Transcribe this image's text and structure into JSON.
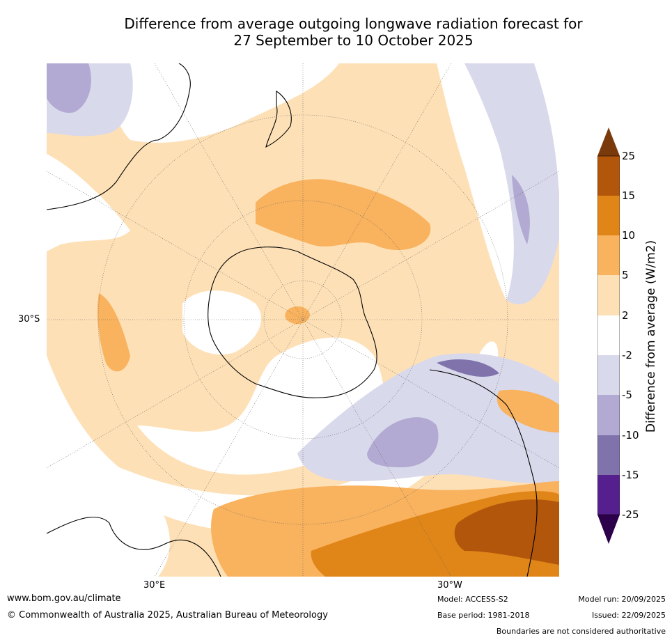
{
  "title": {
    "line1": "Difference from average outgoing longwave radiation forecast for",
    "line2": "27 September to 10 October 2025"
  },
  "map": {
    "lat_label": "30°S",
    "lon_labels": [
      "30°E",
      "30°W"
    ]
  },
  "colorbar": {
    "title": "Difference from average (W/m2)",
    "ticks": [
      "25",
      "15",
      "10",
      "5",
      "2",
      "-2",
      "-5",
      "-10",
      "-15",
      "-25"
    ],
    "colors": [
      "#7b3a0c",
      "#b2560b",
      "#e08518",
      "#f9b25d",
      "#fde0b6",
      "#ffffff",
      "#d9d9ec",
      "#b2aad2",
      "#8073ac",
      "#55208d",
      "#2d004b"
    ]
  },
  "footer": {
    "url": "www.bom.gov.au/climate",
    "copyright": "© Commonwealth of Australia 2025, Australian Bureau of Meteorology",
    "model": "Model: ACCESS-S2",
    "base_period": "Base period: 1981-2018",
    "model_run": "Model run: 20/09/2025",
    "issued": "Issued: 22/09/2025",
    "boundaries": "Boundaries are not considered authoritative"
  }
}
